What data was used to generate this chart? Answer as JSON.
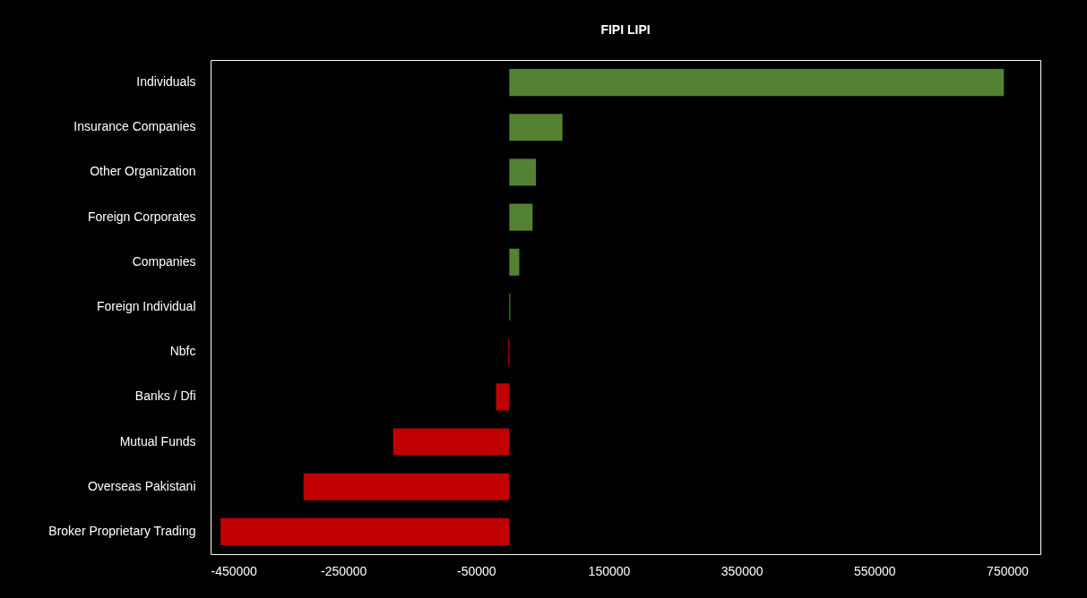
{
  "chart_data": {
    "type": "bar",
    "title": "FIPI LIPI",
    "orientation": "horizontal",
    "categories": [
      "Individuals",
      "Insurance Companies",
      "Other Organization",
      "Foreign Corporates",
      "Companies",
      "Foreign Individual",
      "Nbfc",
      "Banks / Dfi",
      "Mutual Funds",
      "Overseas Pakistani",
      "Broker Proprietary Trading"
    ],
    "values": [
      745000,
      80000,
      40000,
      35000,
      15000,
      1500,
      -1500,
      -20000,
      -175000,
      -310000,
      -435000
    ],
    "colors": [
      "#548235",
      "#548235",
      "#548235",
      "#548235",
      "#548235",
      "#548235",
      "#c00000",
      "#c00000",
      "#c00000",
      "#c00000",
      "#c00000"
    ],
    "xlim": [
      -450000,
      800000
    ],
    "xticks": [
      -450000,
      -250000,
      -50000,
      150000,
      350000,
      550000,
      750000
    ],
    "grid": false
  }
}
